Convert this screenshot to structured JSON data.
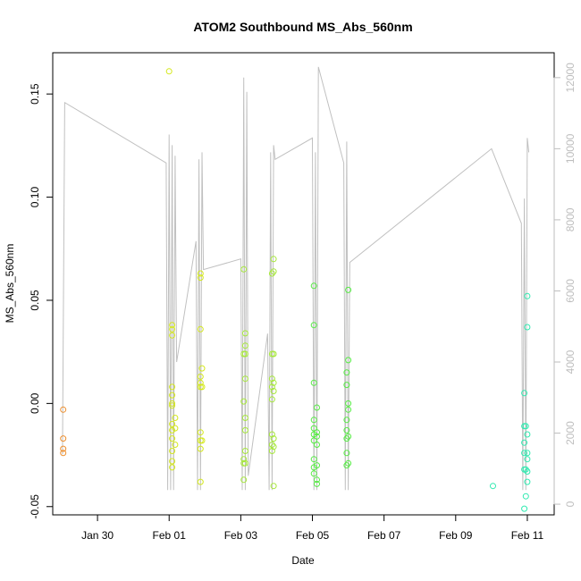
{
  "chart_data": {
    "type": "scatter",
    "title": "ATOM2 Southbound MS_Abs_560nm",
    "xlabel": "Date",
    "ylabel": "MS_Abs_560nm",
    "x_axis": {
      "type": "date",
      "range": [
        "2017-01-28T18:00",
        "2017-02-11T18:00"
      ],
      "ticks": [
        {
          "date": "2017-01-30T00:00",
          "label": "Jan 30"
        },
        {
          "date": "2017-02-01T00:00",
          "label": "Feb 01"
        },
        {
          "date": "2017-02-03T00:00",
          "label": "Feb 03"
        },
        {
          "date": "2017-02-05T00:00",
          "label": "Feb 05"
        },
        {
          "date": "2017-02-07T00:00",
          "label": "Feb 07"
        },
        {
          "date": "2017-02-09T00:00",
          "label": "Feb 09"
        },
        {
          "date": "2017-02-11T00:00",
          "label": "Feb 11"
        }
      ]
    },
    "y_axis": {
      "range": [
        -0.054,
        0.17
      ],
      "ticks": [
        -0.05,
        0.0,
        0.05,
        0.1,
        0.15
      ],
      "tick_labels": [
        "-0.05",
        "0.00",
        "0.05",
        "0.10",
        "0.15"
      ]
    },
    "y2_axis": {
      "range": [
        -300,
        12700
      ],
      "ticks": [
        0,
        2000,
        4000,
        6000,
        8000,
        10000,
        12000
      ],
      "tick_labels": [
        "0",
        "2000",
        "4000",
        "6000",
        "8000",
        "10000",
        "12000"
      ],
      "color": "#bebebe"
    },
    "grid": false,
    "legend": "none",
    "series": [
      {
        "color": "#ee9030",
        "points": [
          [
            "2017-01-29T01:00",
            -0.003
          ],
          [
            "2017-01-29T01:00",
            -0.017
          ],
          [
            "2017-01-29T01:00",
            -0.022
          ],
          [
            "2017-01-29T01:00",
            -0.024
          ]
        ]
      },
      {
        "color": "#d4e81c",
        "points": [
          [
            "2017-02-01T00:00",
            0.161
          ],
          [
            "2017-02-01T02:00",
            0.038
          ],
          [
            "2017-02-01T02:00",
            0.036
          ],
          [
            "2017-02-01T02:00",
            0.033
          ],
          [
            "2017-02-01T02:00",
            0.008
          ],
          [
            "2017-02-01T02:00",
            0.004
          ],
          [
            "2017-02-01T02:00",
            0.0
          ],
          [
            "2017-02-01T02:00",
            -0.001
          ],
          [
            "2017-02-01T02:00",
            -0.01
          ],
          [
            "2017-02-01T02:00",
            -0.013
          ],
          [
            "2017-02-01T02:00",
            -0.017
          ],
          [
            "2017-02-01T02:00",
            -0.023
          ],
          [
            "2017-02-01T02:00",
            -0.028
          ],
          [
            "2017-02-01T02:00",
            -0.031
          ],
          [
            "2017-02-01T04:00",
            -0.007
          ],
          [
            "2017-02-01T04:00",
            -0.012
          ],
          [
            "2017-02-01T04:00",
            -0.02
          ],
          [
            "2017-02-01T21:00",
            0.063
          ],
          [
            "2017-02-01T21:00",
            0.061
          ],
          [
            "2017-02-01T21:00",
            0.036
          ],
          [
            "2017-02-01T21:00",
            0.013
          ],
          [
            "2017-02-01T21:00",
            0.01
          ],
          [
            "2017-02-01T21:00",
            0.008
          ],
          [
            "2017-02-01T21:00",
            -0.014
          ],
          [
            "2017-02-01T21:00",
            -0.018
          ],
          [
            "2017-02-01T21:00",
            -0.022
          ],
          [
            "2017-02-01T21:00",
            -0.038
          ],
          [
            "2017-02-01T22:00",
            0.017
          ],
          [
            "2017-02-01T22:00",
            0.008
          ],
          [
            "2017-02-01T22:00",
            -0.018
          ]
        ]
      },
      {
        "color": "#a6e83a",
        "points": [
          [
            "2017-02-03T02:00",
            0.065
          ],
          [
            "2017-02-03T02:00",
            0.024
          ],
          [
            "2017-02-03T02:00",
            0.001
          ],
          [
            "2017-02-03T02:00",
            -0.027
          ],
          [
            "2017-02-03T02:00",
            -0.029
          ],
          [
            "2017-02-03T02:00",
            -0.037
          ],
          [
            "2017-02-03T03:00",
            0.034
          ],
          [
            "2017-02-03T03:00",
            0.028
          ],
          [
            "2017-02-03T03:00",
            0.024
          ],
          [
            "2017-02-03T03:00",
            0.012
          ],
          [
            "2017-02-03T03:00",
            -0.007
          ],
          [
            "2017-02-03T03:00",
            -0.013
          ],
          [
            "2017-02-03T03:00",
            -0.023
          ],
          [
            "2017-02-03T03:00",
            -0.029
          ],
          [
            "2017-02-03T21:00",
            0.063
          ],
          [
            "2017-02-03T21:00",
            0.024
          ],
          [
            "2017-02-03T21:00",
            0.012
          ],
          [
            "2017-02-03T21:00",
            0.008
          ],
          [
            "2017-02-03T21:00",
            0.002
          ],
          [
            "2017-02-03T21:00",
            -0.015
          ],
          [
            "2017-02-03T21:00",
            -0.02
          ],
          [
            "2017-02-03T21:00",
            -0.023
          ],
          [
            "2017-02-03T22:00",
            0.07
          ],
          [
            "2017-02-03T22:00",
            0.064
          ],
          [
            "2017-02-03T22:00",
            0.024
          ],
          [
            "2017-02-03T22:00",
            0.01
          ],
          [
            "2017-02-03T22:00",
            0.006
          ],
          [
            "2017-02-03T22:00",
            -0.017
          ],
          [
            "2017-02-03T22:00",
            -0.021
          ],
          [
            "2017-02-03T22:00",
            -0.04
          ]
        ]
      },
      {
        "color": "#56ec44",
        "points": [
          [
            "2017-02-05T01:00",
            0.057
          ],
          [
            "2017-02-05T01:00",
            0.038
          ],
          [
            "2017-02-05T01:00",
            0.01
          ],
          [
            "2017-02-05T01:00",
            -0.008
          ],
          [
            "2017-02-05T01:00",
            -0.012
          ],
          [
            "2017-02-05T01:00",
            -0.015
          ],
          [
            "2017-02-05T01:00",
            -0.018
          ],
          [
            "2017-02-05T01:00",
            -0.027
          ],
          [
            "2017-02-05T01:00",
            -0.031
          ],
          [
            "2017-02-05T01:00",
            -0.034
          ],
          [
            "2017-02-05T03:00",
            -0.002
          ],
          [
            "2017-02-05T03:00",
            -0.014
          ],
          [
            "2017-02-05T03:00",
            -0.016
          ],
          [
            "2017-02-05T03:00",
            -0.02
          ],
          [
            "2017-02-05T03:00",
            -0.03
          ],
          [
            "2017-02-05T03:00",
            -0.037
          ],
          [
            "2017-02-05T03:00",
            -0.039
          ],
          [
            "2017-02-05T23:00",
            0.015
          ],
          [
            "2017-02-05T23:00",
            0.009
          ],
          [
            "2017-02-05T23:00",
            -0.008
          ],
          [
            "2017-02-05T23:00",
            -0.013
          ],
          [
            "2017-02-05T23:00",
            -0.017
          ],
          [
            "2017-02-05T23:00",
            -0.024
          ],
          [
            "2017-02-05T23:00",
            -0.03
          ],
          [
            "2017-02-06T00:00",
            0.055
          ],
          [
            "2017-02-06T00:00",
            0.021
          ],
          [
            "2017-02-06T00:00",
            0.0
          ],
          [
            "2017-02-06T00:00",
            -0.003
          ],
          [
            "2017-02-06T00:00",
            -0.016
          ],
          [
            "2017-02-06T00:00",
            -0.029
          ]
        ]
      },
      {
        "color": "#30eab0",
        "points": [
          [
            "2017-02-10T01:00",
            -0.04
          ],
          [
            "2017-02-10T22:00",
            0.005
          ],
          [
            "2017-02-10T22:00",
            -0.011
          ],
          [
            "2017-02-10T22:00",
            -0.019
          ],
          [
            "2017-02-10T22:00",
            -0.024
          ],
          [
            "2017-02-10T22:00",
            -0.032
          ],
          [
            "2017-02-10T22:00",
            -0.051
          ],
          [
            "2017-02-10T23:00",
            -0.011
          ],
          [
            "2017-02-10T23:00",
            -0.032
          ],
          [
            "2017-02-10T23:00",
            -0.045
          ],
          [
            "2017-02-11T00:00",
            0.052
          ],
          [
            "2017-02-11T00:00",
            0.037
          ],
          [
            "2017-02-11T00:00",
            -0.015
          ],
          [
            "2017-02-11T00:00",
            -0.024
          ],
          [
            "2017-02-11T00:00",
            -0.027
          ],
          [
            "2017-02-11T00:00",
            -0.033
          ],
          [
            "2017-02-11T00:00",
            -0.038
          ]
        ]
      }
    ],
    "secondary_line": {
      "color": "#c0c0c0",
      "axis": "y2",
      "points": [
        [
          "2017-01-29T00:30",
          1400
        ],
        [
          "2017-01-29T02:00",
          11300
        ],
        [
          "2017-01-31T22:00",
          9600
        ],
        [
          "2017-01-31T23:00",
          400
        ],
        [
          "2017-02-01T00:00",
          10400
        ],
        [
          "2017-02-01T01:00",
          400
        ],
        [
          "2017-02-01T02:00",
          10100
        ],
        [
          "2017-02-01T03:00",
          400
        ],
        [
          "2017-02-01T04:00",
          9800
        ],
        [
          "2017-02-01T05:00",
          4000
        ],
        [
          "2017-02-01T18:00",
          7400
        ],
        [
          "2017-02-01T19:00",
          400
        ],
        [
          "2017-02-01T20:00",
          9700
        ],
        [
          "2017-02-01T21:00",
          400
        ],
        [
          "2017-02-01T22:00",
          9900
        ],
        [
          "2017-02-01T23:00",
          6600
        ],
        [
          "2017-02-03T00:00",
          6900
        ],
        [
          "2017-02-03T01:00",
          400
        ],
        [
          "2017-02-03T02:00",
          12000
        ],
        [
          "2017-02-03T03:00",
          400
        ],
        [
          "2017-02-03T04:00",
          11600
        ],
        [
          "2017-02-03T05:00",
          800
        ],
        [
          "2017-02-03T18:00",
          4800
        ],
        [
          "2017-02-03T19:00",
          400
        ],
        [
          "2017-02-03T20:00",
          9900
        ],
        [
          "2017-02-03T21:00",
          400
        ],
        [
          "2017-02-03T22:00",
          10100
        ],
        [
          "2017-02-03T23:00",
          9700
        ],
        [
          "2017-02-05T00:00",
          10300
        ],
        [
          "2017-02-05T01:00",
          400
        ],
        [
          "2017-02-05T02:00",
          9900
        ],
        [
          "2017-02-05T03:00",
          400
        ],
        [
          "2017-02-05T04:00",
          12300
        ],
        [
          "2017-02-05T21:00",
          9600
        ],
        [
          "2017-02-05T22:00",
          400
        ],
        [
          "2017-02-05T23:00",
          10200
        ],
        [
          "2017-02-06T00:00",
          400
        ],
        [
          "2017-02-06T01:00",
          6800
        ],
        [
          "2017-02-10T00:00",
          10000
        ],
        [
          "2017-02-10T20:00",
          7900
        ],
        [
          "2017-02-10T21:00",
          400
        ],
        [
          "2017-02-10T22:00",
          8600
        ],
        [
          "2017-02-10T23:00",
          400
        ],
        [
          "2017-02-11T00:00",
          10300
        ],
        [
          "2017-02-11T01:00",
          9900
        ]
      ]
    }
  }
}
